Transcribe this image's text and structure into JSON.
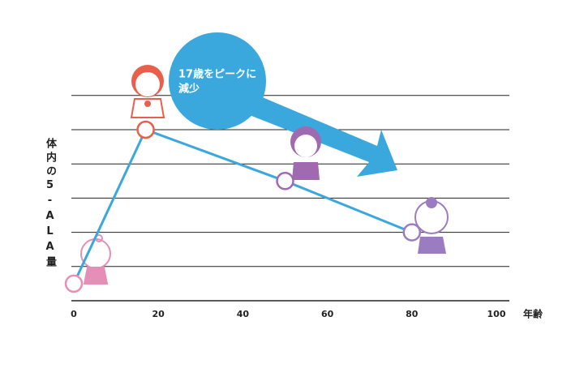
{
  "chart_data": {
    "type": "line",
    "y_label": "体内の5-ALA量",
    "x_label": "年齢",
    "annotation_lines": [
      "17歳をピークに",
      "減少"
    ],
    "x": [
      0,
      17,
      50,
      80
    ],
    "series": [
      {
        "color": "#3aa8dc",
        "values": [
          0.5,
          5,
          3.5,
          2
        ],
        "marker_colors": [
          "#e58fb8",
          "#e8604c",
          "#a06ab0",
          "#9c7cc0"
        ]
      }
    ],
    "xlim": [
      0,
      100
    ],
    "xticks": [
      0,
      20,
      40,
      60,
      80,
      100
    ],
    "ylim": [
      0,
      6
    ],
    "yticks": [
      1,
      2,
      3,
      4,
      5,
      6
    ],
    "grid": true
  }
}
